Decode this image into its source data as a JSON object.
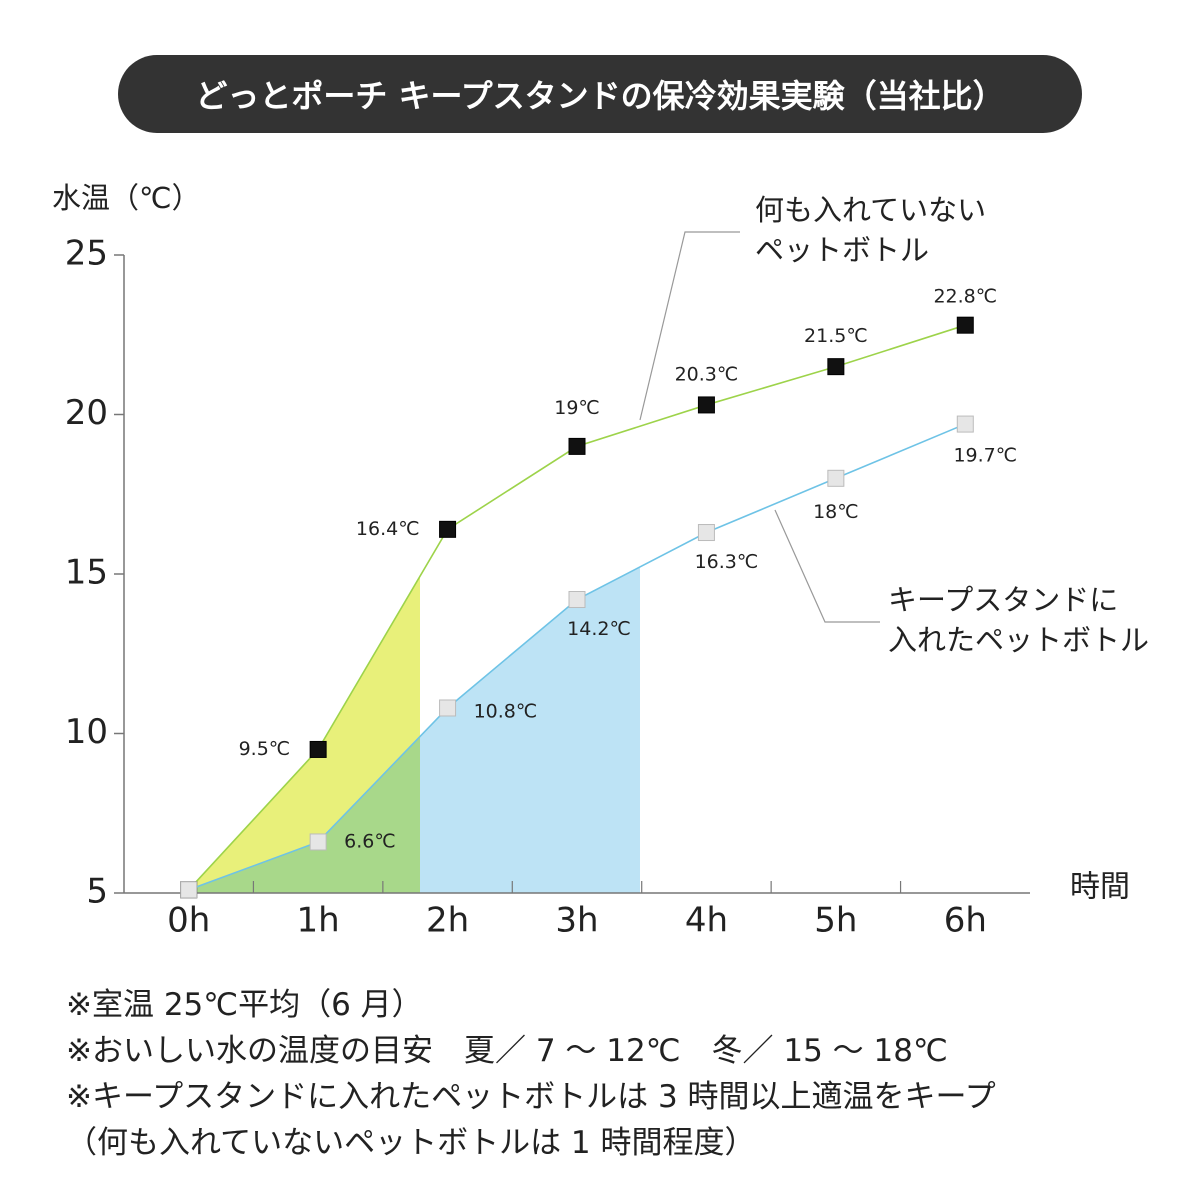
{
  "chart_data": {
    "type": "line",
    "title": "どっとポーチ キープスタンドの保冷効果実験（当社比）",
    "y_label": "水温（℃）",
    "x_label": "時間",
    "categories": [
      "0h",
      "1h",
      "2h",
      "3h",
      "4h",
      "5h",
      "6h"
    ],
    "series": [
      {
        "name": "何も入れていない\nペットボトル",
        "color": "#9dd34a",
        "marker_color": "#111111",
        "values": [
          5.1,
          9.5,
          16.4,
          19,
          20.3,
          21.5,
          22.8
        ],
        "value_labels": [
          null,
          "9.5℃",
          "16.4℃",
          "19℃",
          "20.3℃",
          "21.5℃",
          "22.8℃"
        ]
      },
      {
        "name": "キープスタンドに\n入れたペットボトル",
        "color": "#6ec3e6",
        "marker_color": "#e6e6e6",
        "values": [
          5.1,
          6.6,
          10.8,
          14.2,
          16.3,
          18,
          19.7
        ],
        "value_labels": [
          null,
          "6.6℃",
          "10.8℃",
          "14.2℃",
          "16.3℃",
          "18℃",
          "19.7℃"
        ]
      }
    ],
    "ylim": [
      5,
      25
    ],
    "yticks": [
      5,
      10,
      15,
      20,
      25
    ],
    "grid": false
  },
  "notes": [
    "※室温 25℃平均（6 月）",
    "※おいしい水の温度の目安　夏／ 7 ～ 12℃　冬／ 15 ～ 18℃",
    "※キープスタンドに入れたペットボトルは 3 時間以上適温をキープ",
    "（何も入れていないペットボトルは 1 時間程度）"
  ]
}
